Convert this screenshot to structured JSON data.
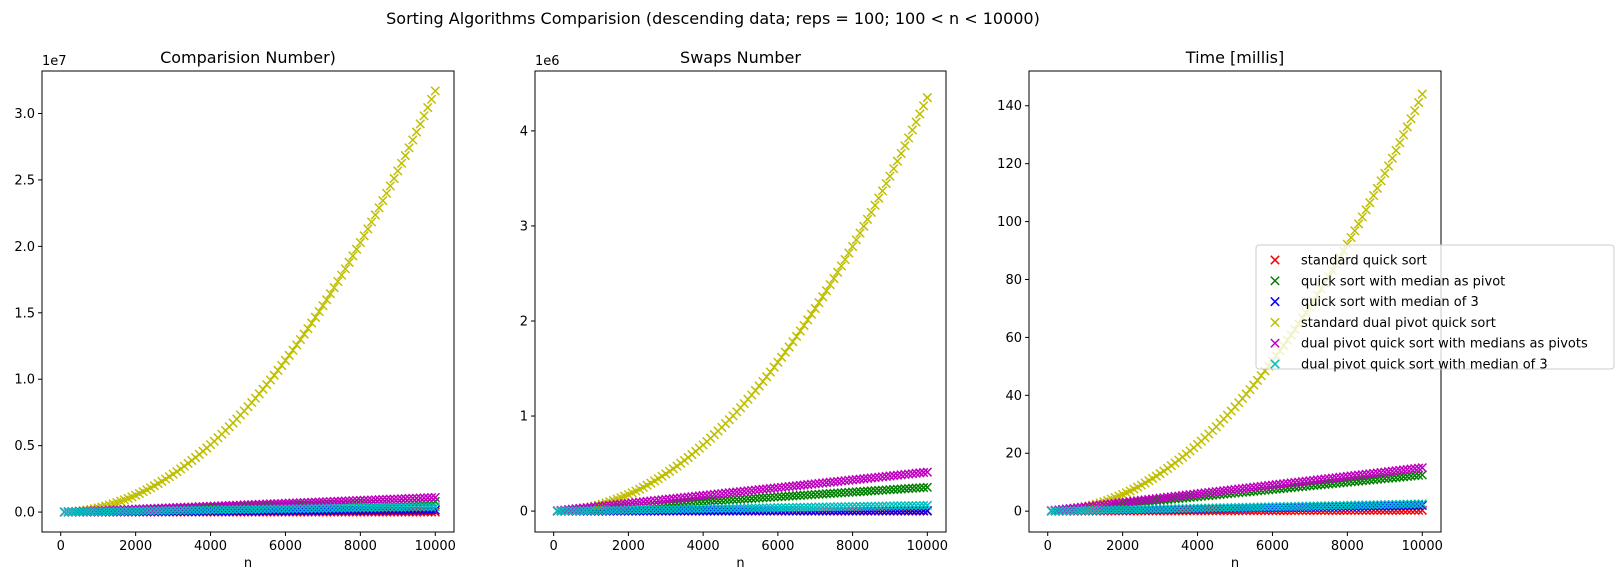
{
  "figure": {
    "suptitle": "Sorting Algorithms Comparision (descending data; reps = 100; 100 < n < 10000)"
  },
  "legend": {
    "placement": "center-right",
    "entries": [
      {
        "label": "standard quick sort",
        "color": "#ff0000"
      },
      {
        "label": "quick sort with median as pivot",
        "color": "#008000"
      },
      {
        "label": "quick sort with median of 3",
        "color": "#0000ff"
      },
      {
        "label": "standard dual pivot quick sort",
        "color": "#bfbf00"
      },
      {
        "label": "dual pivot quick sort with medians as pivots",
        "color": "#bf00bf"
      },
      {
        "label": "dual pivot quick sort with median of 3",
        "color": "#00bfbf"
      }
    ]
  },
  "chart_data": [
    {
      "type": "scatter",
      "title": "Comparision Number)",
      "xlabel": "n",
      "ylabel": "",
      "offset_text": "1e7",
      "xlim": [
        -500,
        10500
      ],
      "ylim": [
        -0.15,
        3.32
      ],
      "xticks": [
        0,
        2000,
        4000,
        6000,
        8000,
        10000
      ],
      "xtick_labels": [
        "0",
        "2000",
        "4000",
        "6000",
        "8000",
        "10000"
      ],
      "yticks": [
        0,
        0.5,
        1.0,
        1.5,
        2.0,
        2.5,
        3.0
      ],
      "ytick_labels": [
        "0.0",
        "0.5",
        "1.0",
        "1.5",
        "2.0",
        "2.5",
        "3.0"
      ],
      "x": {
        "start": 100,
        "end": 10000,
        "count": 100
      },
      "series": [
        {
          "name": "standard quick sort",
          "model": "linear",
          "end_value": 0.0
        },
        {
          "name": "quick sort with median as pivot",
          "model": "linear",
          "end_value": 0.08
        },
        {
          "name": "quick sort with median of 3",
          "model": "linear",
          "end_value": 0.015
        },
        {
          "name": "standard dual pivot quick sort",
          "model": "quadratic",
          "end_value": 3.17
        },
        {
          "name": "dual pivot quick sort with medians as pivots",
          "model": "linear",
          "end_value": 0.11
        },
        {
          "name": "dual pivot quick sort with median of 3",
          "model": "linear",
          "end_value": 0.04
        }
      ]
    },
    {
      "type": "scatter",
      "title": "Swaps Number",
      "xlabel": "n",
      "ylabel": "",
      "offset_text": "1e6",
      "xlim": [
        -500,
        10500
      ],
      "ylim": [
        -0.22,
        4.63
      ],
      "xticks": [
        0,
        2000,
        4000,
        6000,
        8000,
        10000
      ],
      "xtick_labels": [
        "0",
        "2000",
        "4000",
        "6000",
        "8000",
        "10000"
      ],
      "yticks": [
        0,
        1,
        2,
        3,
        4
      ],
      "ytick_labels": [
        "0",
        "1",
        "2",
        "3",
        "4"
      ],
      "x": {
        "start": 100,
        "end": 10000,
        "count": 100
      },
      "series": [
        {
          "name": "standard quick sort",
          "model": "linear",
          "end_value": 0.0
        },
        {
          "name": "quick sort with median as pivot",
          "model": "linear",
          "end_value": 0.25
        },
        {
          "name": "quick sort with median of 3",
          "model": "linear",
          "end_value": 0.005
        },
        {
          "name": "standard dual pivot quick sort",
          "model": "quadratic",
          "end_value": 4.35
        },
        {
          "name": "dual pivot quick sort with medians as pivots",
          "model": "linear",
          "end_value": 0.41
        },
        {
          "name": "dual pivot quick sort with median of 3",
          "model": "linear",
          "end_value": 0.06
        }
      ]
    },
    {
      "type": "scatter",
      "title": "Time [millis]",
      "xlabel": "n",
      "ylabel": "",
      "offset_text": "",
      "xlim": [
        -500,
        10500
      ],
      "ylim": [
        -7.2,
        152
      ],
      "xticks": [
        0,
        2000,
        4000,
        6000,
        8000,
        10000
      ],
      "xtick_labels": [
        "0",
        "2000",
        "4000",
        "6000",
        "8000",
        "10000"
      ],
      "yticks": [
        0,
        20,
        40,
        60,
        80,
        100,
        120,
        140
      ],
      "ytick_labels": [
        "0",
        "20",
        "40",
        "60",
        "80",
        "100",
        "120",
        "140"
      ],
      "x": {
        "start": 100,
        "end": 10000,
        "count": 100
      },
      "series": [
        {
          "name": "standard quick sort",
          "model": "linear",
          "end_value": 0.3
        },
        {
          "name": "quick sort with median as pivot",
          "model": "linear",
          "end_value": 12.5
        },
        {
          "name": "quick sort with median of 3",
          "model": "linear",
          "end_value": 2.0
        },
        {
          "name": "standard dual pivot quick sort",
          "model": "quadratic",
          "end_value": 144
        },
        {
          "name": "dual pivot quick sort with medians as pivots",
          "model": "linear",
          "end_value": 15.0
        },
        {
          "name": "dual pivot quick sort with median of 3",
          "model": "linear",
          "end_value": 2.5
        }
      ]
    }
  ]
}
